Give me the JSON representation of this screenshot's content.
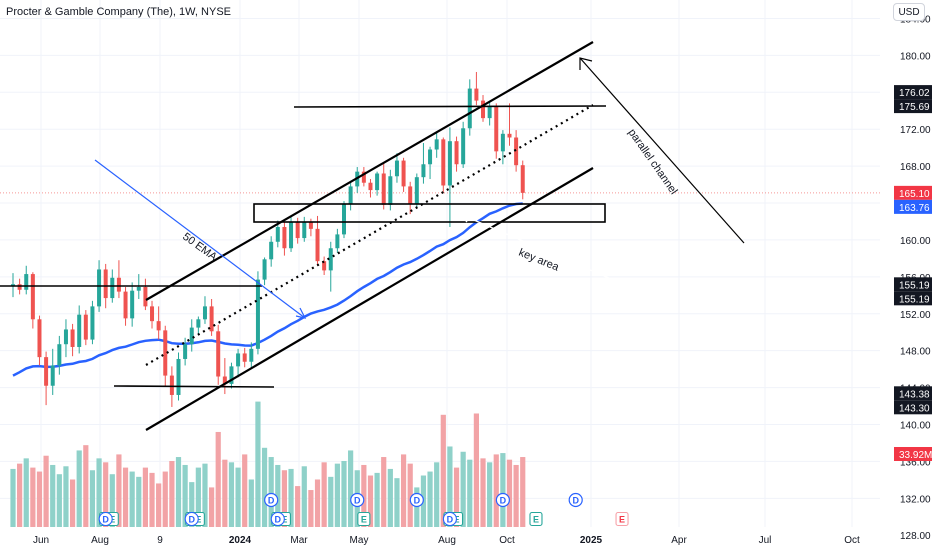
{
  "header": {
    "symbol_name": "Procter & Gamble Company (The)",
    "interval": "1W",
    "exchange": "NYSE",
    "currency_button": "USD"
  },
  "colors": {
    "up": "#26a69a",
    "down": "#ef5350",
    "vol_up": "#8fd1c9",
    "vol_down": "#f2a3a6",
    "ema": "#2962ff",
    "accent_blue": "#2962ff",
    "price_tag_black": "#131722",
    "price_tag_red": "#f23645"
  },
  "chart_data": {
    "type": "candlestick",
    "price_axis": {
      "min": 126.4,
      "max": 186.0,
      "ticks": [
        128.0,
        132.0,
        136.0,
        140.0,
        144.0,
        148.0,
        152.0,
        156.0,
        160.0,
        164.0,
        168.0,
        172.0,
        176.0,
        180.0,
        184.0
      ]
    },
    "time_axis": {
      "labels": [
        "Jun",
        "Aug",
        "9",
        "2024",
        "Mar",
        "May",
        "Aug",
        "Oct",
        "2025",
        "Apr",
        "Jul",
        "Oct"
      ],
      "bold_labels": [
        "2024",
        "2025"
      ]
    },
    "start_date": "2023-05-08",
    "candles": [
      [
        155,
        156.4,
        153.8,
        155.2
      ],
      [
        155.2,
        155.8,
        154.1,
        154.6
      ],
      [
        154.6,
        157.2,
        154.1,
        156.3
      ],
      [
        156.3,
        156.5,
        150.4,
        151.4
      ],
      [
        151.4,
        151.8,
        146.4,
        147.3
      ],
      [
        147.3,
        147.9,
        142.1,
        144.2
      ],
      [
        144.2,
        148.2,
        143.2,
        146.4
      ],
      [
        146.4,
        149.6,
        145.4,
        148.7
      ],
      [
        148.7,
        151.4,
        147.3,
        150.3
      ],
      [
        150.3,
        150.9,
        147.4,
        148.4
      ],
      [
        148.4,
        152.9,
        147.7,
        151.9
      ],
      [
        151.9,
        152.4,
        148.6,
        149.2
      ],
      [
        149.2,
        153.4,
        148.7,
        152.8
      ],
      [
        152.8,
        157.8,
        152.2,
        156.8
      ],
      [
        156.8,
        157.4,
        152.6,
        153.7
      ],
      [
        153.7,
        156.8,
        153.2,
        155.9
      ],
      [
        155.9,
        157.8,
        153.7,
        154.4
      ],
      [
        154.4,
        154.9,
        150.7,
        151.5
      ],
      [
        151.5,
        155.4,
        150.6,
        154.5
      ],
      [
        154.5,
        156.3,
        153.6,
        154.9
      ],
      [
        154.9,
        155.8,
        152.4,
        152.8
      ],
      [
        152.8,
        153.4,
        150.4,
        151.2
      ],
      [
        151.2,
        152.8,
        149.2,
        150.2
      ],
      [
        150.2,
        150.7,
        144.2,
        145.3
      ],
      [
        145.3,
        146.3,
        141.9,
        143.2
      ],
      [
        143.2,
        147.8,
        142.6,
        147.1
      ],
      [
        147.1,
        149.4,
        146.4,
        148.7
      ],
      [
        148.7,
        151.4,
        147.9,
        150.5
      ],
      [
        150.5,
        151.7,
        149.8,
        151.4
      ],
      [
        151.4,
        153.9,
        150.9,
        152.8
      ],
      [
        152.8,
        153.6,
        149.6,
        150.1
      ],
      [
        150.1,
        150.8,
        144.3,
        145.2
      ],
      [
        145.2,
        147.2,
        143.3,
        144.4
      ],
      [
        144.4,
        146.7,
        143.9,
        146.3
      ],
      [
        146.3,
        148.2,
        145.1,
        147.7
      ],
      [
        147.7,
        148.3,
        146.2,
        146.8
      ],
      [
        146.8,
        148.9,
        146.1,
        148.2
      ],
      [
        148.2,
        156.6,
        147.6,
        155.7
      ],
      [
        155.7,
        158.1,
        155.1,
        157.9
      ],
      [
        157.9,
        160.4,
        157.1,
        159.8
      ],
      [
        159.8,
        162.1,
        159.2,
        161.4
      ],
      [
        161.4,
        161.9,
        158.3,
        159.1
      ],
      [
        159.1,
        162.6,
        158.7,
        161.9
      ],
      [
        161.9,
        162.4,
        159.6,
        160.2
      ],
      [
        160.2,
        162.5,
        159.8,
        161.9
      ],
      [
        161.9,
        162.3,
        160.4,
        161.2
      ],
      [
        161.2,
        162.6,
        157.2,
        157.7
      ],
      [
        157.7,
        158.2,
        156.2,
        156.7
      ],
      [
        156.7,
        159.8,
        154.4,
        159.1
      ],
      [
        159.1,
        161.2,
        158.6,
        160.6
      ],
      [
        160.6,
        164.2,
        160.2,
        163.9
      ],
      [
        163.9,
        166.4,
        163.2,
        165.8
      ],
      [
        165.8,
        167.9,
        165.1,
        167.4
      ],
      [
        167.4,
        167.9,
        165.8,
        166.2
      ],
      [
        166.2,
        166.6,
        164.6,
        165.4
      ],
      [
        165.4,
        167.4,
        164.8,
        167.2
      ],
      [
        167.2,
        168.4,
        163.3,
        163.8
      ],
      [
        163.8,
        167.6,
        163.2,
        166.9
      ],
      [
        166.9,
        169.4,
        166.2,
        168.6
      ],
      [
        168.6,
        168.9,
        165.2,
        165.8
      ],
      [
        165.8,
        166.3,
        162.8,
        163.9
      ],
      [
        163.9,
        167.2,
        163.4,
        166.8
      ],
      [
        166.8,
        170.5,
        166.1,
        168.2
      ],
      [
        168.2,
        170.1,
        166.6,
        169.8
      ],
      [
        169.8,
        171.7,
        168.9,
        170.9
      ],
      [
        170.9,
        171.1,
        165.1,
        165.9
      ],
      [
        165.9,
        172.2,
        161.4,
        170.7
      ],
      [
        170.7,
        171.2,
        167.4,
        168.2
      ],
      [
        168.2,
        172.8,
        167.8,
        172.1
      ],
      [
        172.1,
        177.4,
        171.3,
        176.4
      ],
      [
        176.4,
        178.2,
        174.6,
        175.1
      ],
      [
        175.1,
        175.7,
        172.8,
        173.2
      ],
      [
        173.2,
        175.1,
        172.4,
        174.4
      ],
      [
        174.4,
        174.8,
        168.8,
        169.6
      ],
      [
        169.6,
        171.9,
        168.2,
        171.5
      ],
      [
        171.5,
        174.8,
        170.2,
        171.1
      ],
      [
        171.1,
        171.9,
        167.4,
        168.1
      ],
      [
        168.1,
        168.6,
        164.4,
        165.1
      ]
    ],
    "volumes": [
      0.44,
      0.48,
      0.52,
      0.45,
      0.42,
      0.54,
      0.47,
      0.4,
      0.46,
      0.36,
      0.58,
      0.62,
      0.43,
      0.52,
      0.49,
      0.4,
      0.55,
      0.45,
      0.42,
      0.38,
      0.45,
      0.41,
      0.33,
      0.42,
      0.5,
      0.53,
      0.47,
      0.34,
      0.45,
      0.48,
      0.3,
      0.72,
      0.51,
      0.49,
      0.45,
      0.55,
      0.36,
      0.95,
      0.6,
      0.53,
      0.47,
      0.43,
      0.44,
      0.31,
      0.46,
      0.28,
      0.36,
      0.49,
      0.38,
      0.48,
      0.5,
      0.58,
      0.43,
      0.47,
      0.39,
      0.41,
      0.53,
      0.44,
      0.37,
      0.55,
      0.48,
      0.3,
      0.39,
      0.42,
      0.49,
      0.85,
      0.61,
      0.45,
      0.57,
      0.51,
      0.86,
      0.52,
      0.49,
      0.55,
      0.56,
      0.51,
      0.47,
      0.53
    ],
    "events": {
      "dividend": [
        39,
        52,
        61,
        74,
        85
      ],
      "earnings": [
        14,
        15,
        27,
        28,
        40,
        41,
        53,
        66,
        67,
        79
      ],
      "future_earnings": [
        92
      ]
    },
    "price_tags": [
      {
        "label": "176.02",
        "value": 176.02,
        "style": "dark"
      },
      {
        "label": "175.69",
        "value": 175.69,
        "style": "dark"
      },
      {
        "label": "165.10",
        "value": 165.1,
        "style": "last"
      },
      {
        "label": "163.76",
        "value": 163.76,
        "style": "ema"
      },
      {
        "label": "155.19",
        "value": 155.19,
        "style": "dark"
      },
      {
        "label": "155.19",
        "value": 155.19,
        "style": "dark"
      },
      {
        "label": "143.38",
        "value": 143.38,
        "style": "dark"
      },
      {
        "label": "143.30",
        "value": 143.3,
        "style": "dark"
      },
      {
        "label": "33.92M",
        "value": 33.92,
        "style": "volume"
      }
    ]
  },
  "annotations": {
    "ema_label": "50 EMA",
    "key_area_label": "key area",
    "channel_label": "parallel channel"
  }
}
